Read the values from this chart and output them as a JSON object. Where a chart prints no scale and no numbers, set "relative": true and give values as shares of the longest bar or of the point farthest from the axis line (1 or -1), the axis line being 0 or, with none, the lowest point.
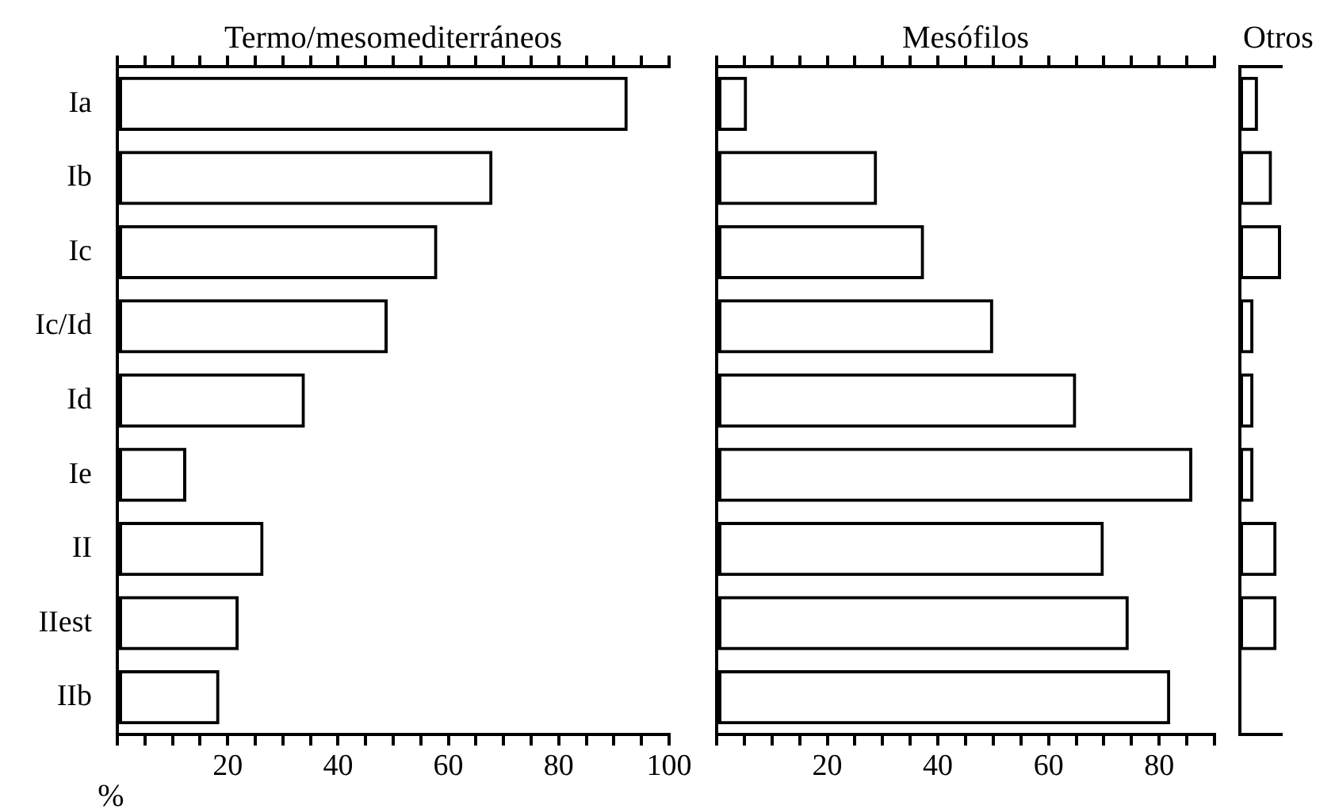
{
  "chart_data": [
    {
      "type": "bar",
      "orientation": "horizontal",
      "title": "Termo/mesomediterráneos",
      "xlabel": "%",
      "categories": [
        "Ia",
        "Ib",
        "Ic",
        "Ic/Id",
        "Id",
        "Ie",
        "II",
        "IIest",
        "IIb"
      ],
      "values": [
        92.5,
        68,
        58,
        49,
        34,
        12.5,
        26.5,
        22,
        18.5
      ],
      "color": "#000000",
      "xlim": [
        0,
        100
      ],
      "xticks": [
        {
          "value": 0,
          "label": null
        },
        {
          "value": 5,
          "label": null
        },
        {
          "value": 10,
          "label": null
        },
        {
          "value": 15,
          "label": null
        },
        20,
        {
          "value": 25,
          "label": null
        },
        {
          "value": 30,
          "label": null
        },
        {
          "value": 35,
          "label": null
        },
        40,
        {
          "value": 45,
          "label": null
        },
        {
          "value": 50,
          "label": null
        },
        {
          "value": 55,
          "label": null
        },
        60,
        {
          "value": 65,
          "label": null
        },
        {
          "value": 70,
          "label": null
        },
        {
          "value": 75,
          "label": null
        },
        80,
        {
          "value": 85,
          "label": null
        },
        {
          "value": 90,
          "label": null
        },
        {
          "value": 95,
          "label": null
        },
        100
      ]
    },
    {
      "type": "bar",
      "orientation": "horizontal",
      "title": "Mesófilos",
      "categories": [
        null,
        null,
        null,
        null,
        null,
        null,
        null,
        null,
        null
      ],
      "values": [
        5.5,
        29,
        37.5,
        50,
        65,
        86,
        70,
        74.5,
        82
      ],
      "color": "#000000",
      "xlim": [
        0,
        90
      ],
      "xticks": [
        {
          "value": 0,
          "label": null
        },
        {
          "value": 5,
          "label": null
        },
        {
          "value": 10,
          "label": null
        },
        {
          "value": 15,
          "label": null
        },
        20,
        {
          "value": 25,
          "label": null
        },
        {
          "value": 30,
          "label": null
        },
        {
          "value": 35,
          "label": null
        },
        40,
        {
          "value": 45,
          "label": null
        },
        {
          "value": 50,
          "label": null
        },
        {
          "value": 55,
          "label": null
        },
        60,
        {
          "value": 65,
          "label": null
        },
        {
          "value": 70,
          "label": null
        },
        {
          "value": 75,
          "label": null
        },
        80,
        {
          "value": 85,
          "label": null
        },
        {
          "value": 90,
          "label": null
        }
      ],
      "tick_labels": "x"
    },
    {
      "type": "bar",
      "orientation": "horizontal",
      "title": "Otros",
      "categories": [
        null,
        null,
        null,
        null,
        null,
        null,
        null,
        null,
        null
      ],
      "values": [
        0.44,
        0.78,
        1,
        0.33,
        0.33,
        0.33,
        0.89,
        0.89,
        null
      ],
      "color": "#000000",
      "relative": true,
      "tick_labels": false
    }
  ]
}
